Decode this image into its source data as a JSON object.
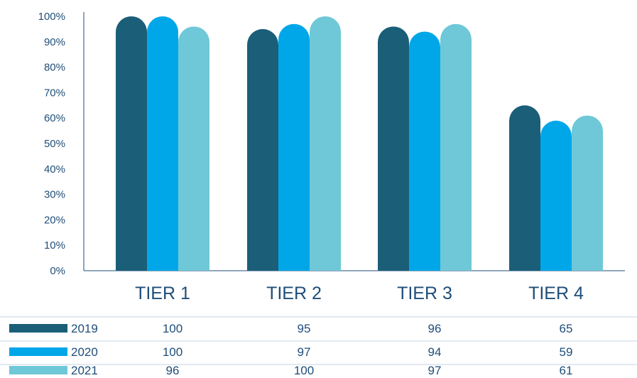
{
  "chart_data": {
    "type": "bar",
    "title": "",
    "xlabel": "",
    "ylabel": "",
    "ylim": [
      0,
      100
    ],
    "yticks": [
      "0%",
      "10%",
      "20%",
      "30%",
      "40%",
      "50%",
      "60%",
      "70%",
      "80%",
      "90%",
      "100%"
    ],
    "categories": [
      "TIER 1",
      "TIER 2",
      "TIER 3",
      "TIER 4"
    ],
    "series": [
      {
        "name": "2019",
        "values": [
          100,
          95,
          96,
          65
        ],
        "color": "#1b5e78"
      },
      {
        "name": "2020",
        "values": [
          100,
          97,
          94,
          59
        ],
        "color": "#00a7e8"
      },
      {
        "name": "2021",
        "values": [
          96,
          100,
          97,
          61
        ],
        "color": "#6fc8d7"
      }
    ],
    "grid": false,
    "legend": "data-table-below"
  }
}
